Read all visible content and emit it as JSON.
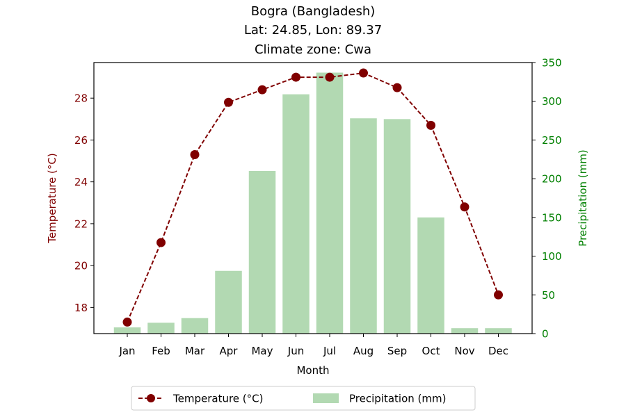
{
  "chart_data": {
    "type": "bar+line",
    "title": "Bogra (Bangladesh)",
    "subtitle_lines": [
      "Lat: 24.85, Lon: 89.37",
      "Climate zone: Cwa"
    ],
    "xlabel": "Month",
    "categories": [
      "Jan",
      "Feb",
      "Mar",
      "Apr",
      "May",
      "Jun",
      "Jul",
      "Aug",
      "Sep",
      "Oct",
      "Nov",
      "Dec"
    ],
    "temperature": {
      "name": "Temperature (°C)",
      "axis": "left",
      "ylabel": "Temperature (°C)",
      "ylim": [
        16.75,
        29.7
      ],
      "ticks": [
        18,
        20,
        22,
        24,
        26,
        28
      ],
      "values": [
        17.3,
        21.1,
        25.3,
        27.8,
        28.4,
        29.0,
        29.0,
        29.2,
        28.5,
        26.7,
        22.8,
        18.6
      ],
      "color": "#800000",
      "style": "dashed line with circle markers"
    },
    "precipitation": {
      "name": "Precipitation (mm)",
      "axis": "right",
      "ylabel": "Precipitation (mm)",
      "ylim": [
        0,
        350
      ],
      "ticks": [
        0,
        50,
        100,
        150,
        200,
        250,
        300,
        350
      ],
      "values": [
        8,
        14,
        20,
        81,
        210,
        309,
        337,
        278,
        277,
        150,
        7,
        7
      ],
      "color": "#b2d9b2"
    },
    "legend": {
      "placement": "bottom-center",
      "ncol": 2
    },
    "grid": false,
    "tick_label_color_left": "#800000",
    "tick_label_color_right": "#008000"
  }
}
